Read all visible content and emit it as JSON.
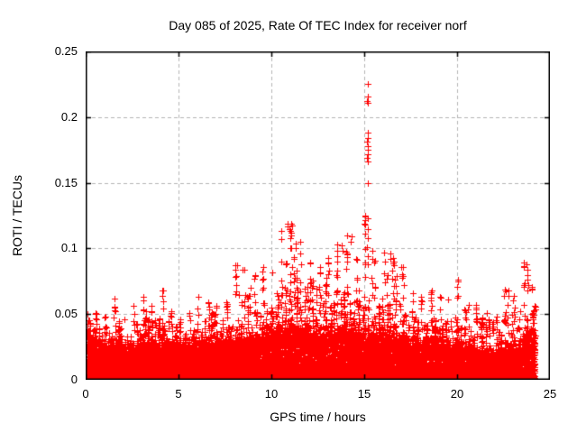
{
  "chart_data": {
    "type": "scatter",
    "title": "Day 085 of 2025, Rate Of TEC Index for receiver norf",
    "xlabel": "GPS time / hours",
    "ylabel": "ROTI / TECUs",
    "xlim": [
      0,
      25
    ],
    "ylim": [
      0,
      0.25
    ],
    "x_ticks": [
      0,
      5,
      10,
      15,
      20,
      25
    ],
    "y_ticks": [
      0,
      0.05,
      0.1,
      0.15,
      0.2,
      0.25
    ],
    "x_tick_labels": [
      "0",
      "5",
      "10",
      "15",
      "20",
      "25"
    ],
    "y_tick_labels": [
      "0",
      "0.05",
      "0.1",
      "0.15",
      "0.2",
      "0.25"
    ],
    "grid": "dashed-gray-at-major-ticks",
    "legend": "none",
    "marker": "plus",
    "marker_size_px": 7,
    "marker_color": "#ff0000",
    "grid_color": "#b5b5b5",
    "axis_color": "#000000",
    "x_data_range": [
      0,
      24.2
    ],
    "bin_width_hours": 0.5,
    "bins_start_hours": [
      0,
      0.5,
      1,
      1.5,
      2,
      2.5,
      3,
      3.5,
      4,
      4.5,
      5,
      5.5,
      6,
      6.5,
      7,
      7.5,
      8,
      8.5,
      9,
      9.5,
      10,
      10.5,
      11,
      11.5,
      12,
      12.5,
      13,
      13.5,
      14,
      14.5,
      15,
      15.5,
      16,
      16.5,
      17,
      17.5,
      18,
      18.5,
      19,
      19.5,
      20,
      20.5,
      21,
      21.5,
      22,
      22.5,
      23,
      23.5,
      24
    ],
    "dense_band_top": [
      0.03,
      0.026,
      0.025,
      0.027,
      0.022,
      0.024,
      0.027,
      0.026,
      0.027,
      0.024,
      0.024,
      0.026,
      0.028,
      0.028,
      0.027,
      0.028,
      0.031,
      0.031,
      0.03,
      0.033,
      0.035,
      0.038,
      0.04,
      0.038,
      0.035,
      0.034,
      0.035,
      0.036,
      0.036,
      0.034,
      0.035,
      0.034,
      0.032,
      0.031,
      0.029,
      0.027,
      0.027,
      0.027,
      0.026,
      0.025,
      0.025,
      0.023,
      0.021,
      0.02,
      0.021,
      0.023,
      0.023,
      0.031,
      0.03
    ],
    "max_envelope": [
      0.05,
      0.051,
      0.048,
      0.062,
      0.046,
      0.056,
      0.063,
      0.056,
      0.068,
      0.052,
      0.046,
      0.051,
      0.063,
      0.059,
      0.056,
      0.059,
      0.087,
      0.084,
      0.08,
      0.086,
      0.082,
      0.113,
      0.119,
      0.105,
      0.089,
      0.086,
      0.093,
      0.103,
      0.11,
      0.092,
      0.125,
      0.091,
      0.097,
      0.093,
      0.086,
      0.066,
      0.063,
      0.068,
      0.063,
      0.061,
      0.076,
      0.057,
      0.057,
      0.051,
      0.048,
      0.069,
      0.064,
      0.089,
      0.071
    ],
    "outlier_points": [
      [
        15.17,
        0.225
      ],
      [
        15.17,
        0.216
      ],
      [
        15.15,
        0.212
      ],
      [
        15.19,
        0.211
      ],
      [
        15.17,
        0.188
      ],
      [
        15.18,
        0.184
      ],
      [
        15.16,
        0.181
      ],
      [
        15.19,
        0.178
      ],
      [
        15.17,
        0.175
      ],
      [
        15.2,
        0.172
      ],
      [
        15.16,
        0.169
      ],
      [
        15.18,
        0.166
      ],
      [
        15.17,
        0.15
      ],
      [
        15.17,
        0.123
      ],
      [
        15.05,
        0.124
      ],
      [
        15.06,
        0.118
      ],
      [
        15.17,
        0.115
      ],
      [
        15.18,
        0.108
      ],
      [
        15.16,
        0.101
      ],
      [
        15.17,
        0.094
      ],
      [
        15.18,
        0.088
      ],
      [
        10.85,
        0.119
      ],
      [
        10.88,
        0.117
      ],
      [
        10.95,
        0.115
      ],
      [
        11.0,
        0.113
      ],
      [
        11.05,
        0.11
      ],
      [
        11.3,
        0.104
      ],
      [
        11.32,
        0.1
      ],
      [
        14.3,
        0.109
      ],
      [
        14.28,
        0.105
      ],
      [
        13.8,
        0.102
      ],
      [
        13.82,
        0.098
      ],
      [
        16.4,
        0.096
      ],
      [
        16.42,
        0.092
      ],
      [
        16.6,
        0.09
      ],
      [
        16.62,
        0.087
      ],
      [
        17.0,
        0.086
      ],
      [
        20.05,
        0.075
      ],
      [
        9.55,
        0.086
      ],
      [
        8.15,
        0.087
      ],
      [
        8.45,
        0.084
      ],
      [
        23.75,
        0.088
      ],
      [
        23.78,
        0.084
      ],
      [
        23.8,
        0.08
      ],
      [
        23.77,
        0.076
      ],
      [
        23.82,
        0.072
      ],
      [
        23.79,
        0.068
      ],
      [
        22.75,
        0.068
      ],
      [
        22.77,
        0.064
      ]
    ],
    "render": {
      "seed": 85,
      "base_points_per_bin": 240,
      "edge_points_per_bin": 26,
      "columns_per_bin": 3,
      "y_floor": 0.0015
    }
  }
}
